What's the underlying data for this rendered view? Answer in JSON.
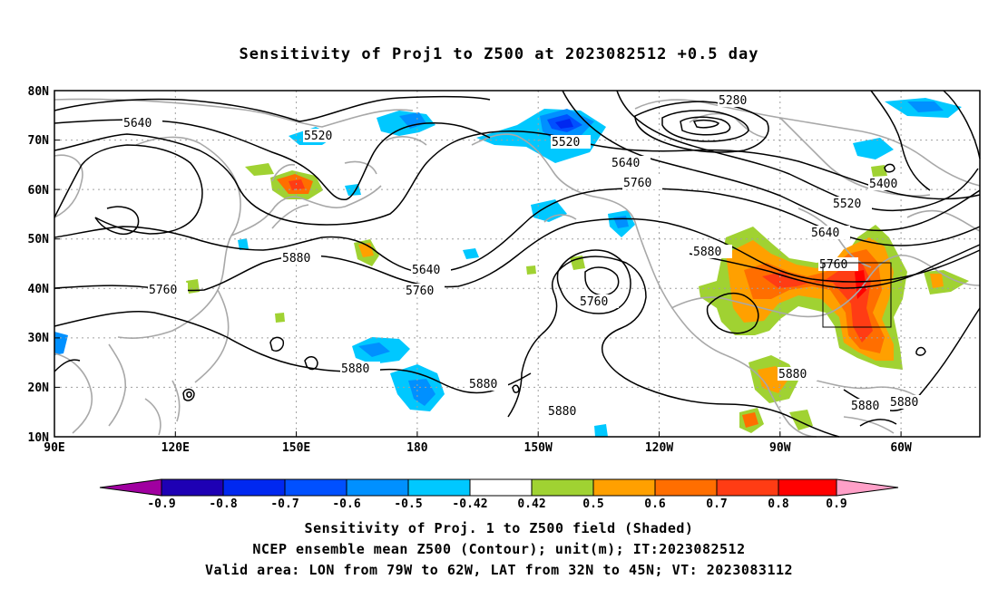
{
  "title": "Sensitivity of Proj1 to Z500 at 2023082512 +0.5 day",
  "lat_labels": [
    "80N",
    "70N",
    "60N",
    "50N",
    "40N",
    "30N",
    "20N",
    "10N"
  ],
  "lon_labels": [
    "90E",
    "120E",
    "150E",
    "180",
    "150W",
    "120W",
    "90W",
    "60W"
  ],
  "contour_labels": [
    "5280",
    "5400",
    "5520",
    "5520",
    "5520",
    "5640",
    "5640",
    "5640",
    "5640",
    "5760",
    "5760",
    "5760",
    "5760",
    "5880",
    "5880",
    "5880",
    "5880",
    "5880",
    "5880",
    "5880",
    "5880"
  ],
  "colorbar_labels": [
    "-0.9",
    "-0.8",
    "-0.7",
    "-0.6",
    "-0.5",
    "-0.42",
    "0.42",
    "0.5",
    "0.6",
    "0.7",
    "0.8",
    "0.9"
  ],
  "colors": {
    "neg_09": "#a000a0",
    "neg_08": "#1e00b4",
    "neg_07": "#0028f0",
    "neg_06": "#0050ff",
    "neg_05": "#0090ff",
    "neg_042": "#00c8ff",
    "neutral": "#ffffff",
    "pos_042": "#a0d232",
    "pos_05": "#ffa000",
    "pos_06": "#ff6e00",
    "pos_07": "#ff3c14",
    "pos_08": "#ff0000",
    "pos_09": "#ffa0c8"
  },
  "captions": [
    "Sensitivity of Proj. 1 to Z500 field (Shaded)",
    "NCEP ensemble mean Z500 (Contour); unit(m); IT:2023082512",
    "Valid area: LON from 79W to 62W, LAT from 32N to 45N; VT: 2023083112"
  ]
}
